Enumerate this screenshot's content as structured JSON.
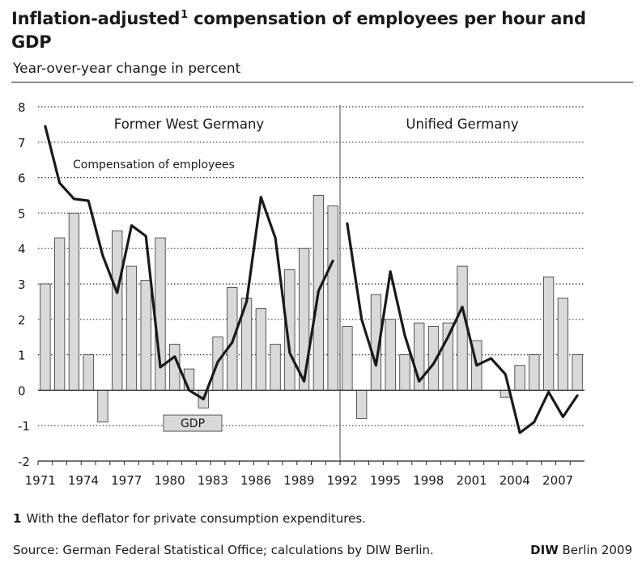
{
  "title": {
    "main": "Inflation-adjusted",
    "superscript": "1",
    "rest": " compensation of employees per hour and GDP"
  },
  "subtitle": "Year-over-year change in percent",
  "footnote": {
    "number": "1",
    "text": "With the deflator for private consumption expenditures."
  },
  "source": "Source: German Federal Statistical Office; calculations by DIW Berlin.",
  "credit": {
    "brand": "DIW",
    "text": " Berlin 2009"
  },
  "colors": {
    "bar_fill": "#d9d9d9",
    "bar_stroke": "#333333",
    "line": "#1a1a1a"
  },
  "chart_data": {
    "type": "bar",
    "years": [
      1971,
      1972,
      1973,
      1974,
      1975,
      1976,
      1977,
      1978,
      1979,
      1980,
      1981,
      1982,
      1983,
      1984,
      1985,
      1986,
      1987,
      1988,
      1989,
      1990,
      1991,
      1992,
      1993,
      1994,
      1995,
      1996,
      1997,
      1998,
      1999,
      2000,
      2001,
      2002,
      2003,
      2004,
      2005,
      2006,
      2007,
      2008
    ],
    "x_tick_labels": [
      "1971",
      "1974",
      "1977",
      "1980",
      "1983",
      "1986",
      "1989",
      "1992",
      "1995",
      "1998",
      "2001",
      "2004",
      "2007"
    ],
    "y_ticks": [
      -2,
      -1,
      0,
      1,
      2,
      3,
      4,
      5,
      6,
      7,
      8
    ],
    "ylim": [
      -2,
      8
    ],
    "grid": "horizontal dotted",
    "series": [
      {
        "name": "GDP",
        "type": "bar",
        "values": [
          3.0,
          4.3,
          5.0,
          1.0,
          -0.9,
          4.5,
          3.5,
          3.1,
          4.3,
          1.3,
          0.6,
          -0.5,
          1.5,
          2.9,
          2.6,
          2.3,
          1.3,
          3.4,
          4.0,
          5.5,
          5.2,
          1.8,
          -0.8,
          2.7,
          2.0,
          1.0,
          1.9,
          1.8,
          1.9,
          3.5,
          1.4,
          0.0,
          -0.2,
          0.7,
          1.0,
          3.2,
          2.6,
          1.0
        ]
      },
      {
        "name": "Compensation of employees",
        "type": "line",
        "segments": [
          {
            "years": [
              1971,
              1972,
              1973,
              1974,
              1975,
              1976,
              1977,
              1978,
              1979,
              1980,
              1981,
              1982,
              1983,
              1984,
              1985,
              1986,
              1987,
              1988,
              1989,
              1990,
              1991
            ],
            "values": [
              7.45,
              5.85,
              5.4,
              5.35,
              3.8,
              2.75,
              4.65,
              4.35,
              0.65,
              0.95,
              0.0,
              -0.25,
              0.8,
              1.35,
              2.5,
              5.45,
              4.3,
              1.05,
              0.25,
              2.8,
              3.65
            ]
          },
          {
            "years": [
              1992,
              1993,
              1994,
              1995,
              1996,
              1997,
              1998,
              1999,
              2000,
              2001,
              2002,
              2003,
              2004,
              2005,
              2006,
              2007,
              2008
            ],
            "values": [
              4.7,
              2.0,
              0.7,
              3.35,
              1.55,
              0.25,
              0.75,
              1.5,
              2.35,
              0.7,
              0.9,
              0.45,
              -1.2,
              -0.9,
              -0.05,
              -0.75,
              -0.15
            ]
          }
        ]
      }
    ],
    "divider_between": [
      1991,
      1992
    ],
    "region_labels": [
      "Former West Germany",
      "Unified Germany"
    ],
    "annotations": [
      "Compensation of employees",
      "GDP"
    ]
  }
}
